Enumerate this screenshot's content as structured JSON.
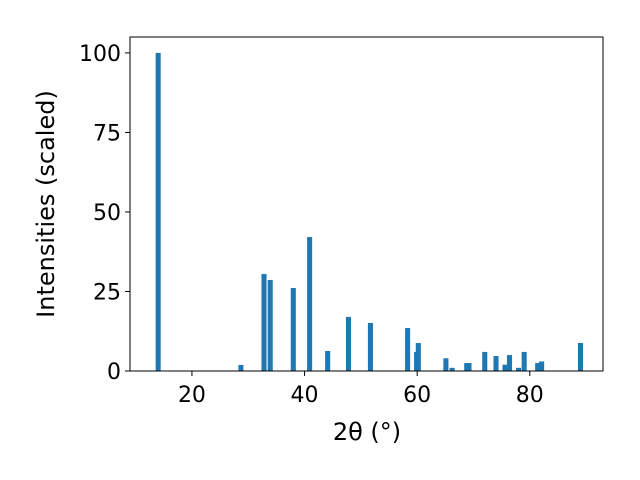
{
  "chart_data": {
    "type": "bar",
    "x_label": "2θ (°)",
    "y_label": "Intensities (scaled)",
    "x": [
      14.0,
      28.7,
      32.8,
      33.9,
      38.0,
      40.9,
      44.1,
      47.8,
      51.7,
      58.3,
      59.9,
      60.2,
      65.1,
      66.2,
      68.8,
      69.2,
      72.0,
      74.0,
      75.6,
      76.4,
      78.0,
      79.0,
      81.4,
      82.1,
      89.0
    ],
    "values": [
      100,
      1.9,
      30.5,
      28.6,
      26.1,
      42.1,
      6.3,
      17,
      15.1,
      13.5,
      6,
      8.8,
      4,
      1,
      2.5,
      2.5,
      6,
      4.7,
      2,
      5,
      1,
      6,
      2.5,
      3,
      8.8
    ],
    "color": "#1f77b4",
    "xlim": [
      9,
      93
    ],
    "ylim": [
      0,
      105
    ],
    "xticks": [
      20,
      40,
      60,
      80
    ],
    "yticks": [
      0,
      25,
      50,
      75,
      100
    ],
    "grid": false
  }
}
